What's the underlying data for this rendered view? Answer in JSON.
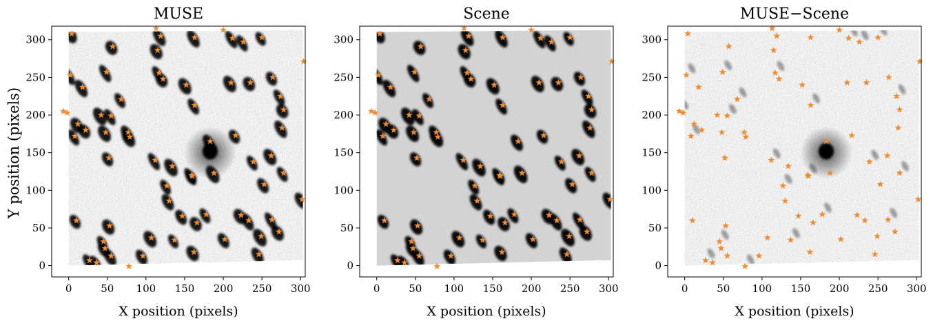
{
  "figure": {
    "ylabel": "Y position (pixels)"
  },
  "chart_data": [
    {
      "type": "scatter",
      "title": "MUSE",
      "xlabel": "X position (pixels)",
      "ylabel": "Y position (pixels)",
      "xlim": [
        -22,
        306
      ],
      "ylim": [
        -15,
        318
      ],
      "xticks": [
        0,
        50,
        100,
        150,
        200,
        250,
        300
      ],
      "yticks": [
        0,
        50,
        100,
        150,
        200,
        250,
        300
      ],
      "image": "MUSE white-light image, grayscale noise with sources and a bright galaxy near (183, 152)",
      "marker": "star",
      "marker_color": "#f28a2e",
      "points_ref": "sources"
    },
    {
      "type": "scatter",
      "title": "Scene",
      "xlabel": "X position (pixels)",
      "xlim": [
        -22,
        306
      ],
      "ylim": [
        -15,
        318
      ],
      "xticks": [
        0,
        50,
        100,
        150,
        200,
        250,
        300
      ],
      "yticks": [
        0,
        50,
        100,
        150,
        200,
        250,
        300
      ],
      "image": "Simulated scene, light gray background with elongated dark sources",
      "marker": "star",
      "marker_color": "#f28a2e",
      "points_ref": "sources"
    },
    {
      "type": "scatter",
      "title": "MUSE−Scene",
      "xlabel": "X position (pixels)",
      "xlim": [
        -22,
        306
      ],
      "ylim": [
        -15,
        318
      ],
      "xticks": [
        0,
        50,
        100,
        150,
        200,
        250,
        300
      ],
      "yticks": [
        0,
        50,
        100,
        150,
        200,
        250,
        300
      ],
      "image": "Residual image, grayscale noise, galaxy near (183, 152) remains",
      "marker": "star",
      "marker_color": "#f28a2e",
      "points_ref": "sources"
    }
  ],
  "sources": [
    [
      -7,
      205
    ],
    [
      -2,
      203
    ],
    [
      4,
      308
    ],
    [
      2,
      253
    ],
    [
      10,
      60
    ],
    [
      12,
      188
    ],
    [
      8,
      172
    ],
    [
      18,
      237
    ],
    [
      22,
      180
    ],
    [
      27,
      7
    ],
    [
      36,
      4
    ],
    [
      42,
      200
    ],
    [
      45,
      32
    ],
    [
      47,
      23
    ],
    [
      48,
      177
    ],
    [
      49,
      257
    ],
    [
      52,
      143
    ],
    [
      53,
      53
    ],
    [
      55,
      199
    ],
    [
      55,
      13
    ],
    [
      57,
      291
    ],
    [
      68,
      221
    ],
    [
      77,
      177
    ],
    [
      79,
      171
    ],
    [
      78,
      -1
    ],
    [
      96,
      13
    ],
    [
      107,
      37
    ],
    [
      112,
      140
    ],
    [
      113,
      315
    ],
    [
      115,
      286
    ],
    [
      117,
      256
    ],
    [
      119,
      305
    ],
    [
      122,
      248
    ],
    [
      127,
      106
    ],
    [
      130,
      86
    ],
    [
      134,
      132
    ],
    [
      137,
      34
    ],
    [
      147,
      66
    ],
    [
      152,
      240
    ],
    [
      159,
      120
    ],
    [
      160,
      119
    ],
    [
      162,
      18
    ],
    [
      163,
      213
    ],
    [
      163,
      303
    ],
    [
      166,
      57
    ],
    [
      178,
      68
    ],
    [
      183,
      165
    ],
    [
      188,
      123
    ],
    [
      200,
      313
    ],
    [
      202,
      35
    ],
    [
      210,
      243
    ],
    [
      212,
      302
    ],
    [
      216,
      173
    ],
    [
      223,
      67
    ],
    [
      226,
      297
    ],
    [
      233,
      60
    ],
    [
      235,
      243
    ],
    [
      239,
      138
    ],
    [
      246,
      15
    ],
    [
      249,
      39
    ],
    [
      250,
      303
    ],
    [
      253,
      108
    ],
    [
      262,
      146
    ],
    [
      263,
      61
    ],
    [
      264,
      250
    ],
    [
      272,
      45
    ],
    [
      274,
      225
    ],
    [
      276,
      183
    ],
    [
      278,
      207
    ],
    [
      278,
      123
    ],
    [
      302,
      88
    ],
    [
      304,
      271
    ]
  ]
}
